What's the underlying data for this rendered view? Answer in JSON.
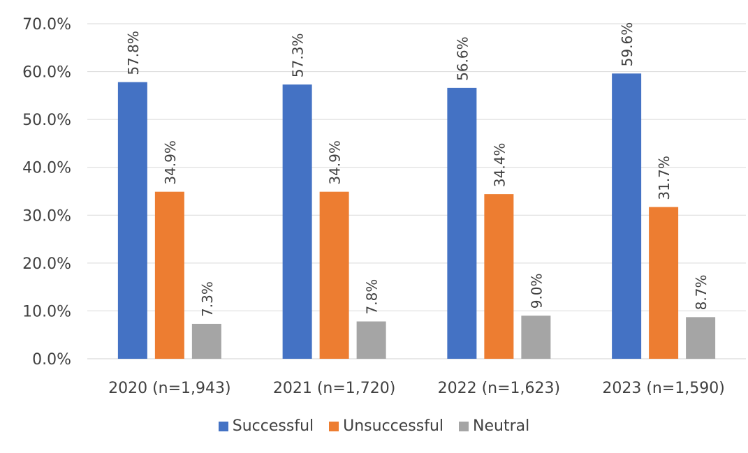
{
  "chart_data": {
    "type": "bar",
    "categories": [
      "2020 (n=1,943)",
      "2021 (n=1,720)",
      "2022 (n=1,623)",
      "2023 (n=1,590)"
    ],
    "series": [
      {
        "name": "Successful",
        "values": [
          57.8,
          57.3,
          56.6,
          59.6
        ],
        "labels": [
          "57.8%",
          "57.3%",
          "56.6%",
          "59.6%"
        ],
        "color": "#4472C4"
      },
      {
        "name": "Unsuccessful",
        "values": [
          34.9,
          34.9,
          34.4,
          31.7
        ],
        "labels": [
          "34.9%",
          "34.9%",
          "34.4%",
          "31.7%"
        ],
        "color": "#ED7D31"
      },
      {
        "name": "Neutral",
        "values": [
          7.3,
          7.8,
          9.0,
          8.7
        ],
        "labels": [
          "7.3%",
          "7.8%",
          "9.0%",
          "8.7%"
        ],
        "color": "#A5A5A5"
      }
    ],
    "y_ticks": [
      "0.0%",
      "10.0%",
      "20.0%",
      "30.0%",
      "40.0%",
      "50.0%",
      "60.0%",
      "70.0%"
    ],
    "ylim": [
      0,
      70
    ],
    "grid": true,
    "legend_position": "bottom",
    "title": "",
    "xlabel": "",
    "ylabel": ""
  }
}
